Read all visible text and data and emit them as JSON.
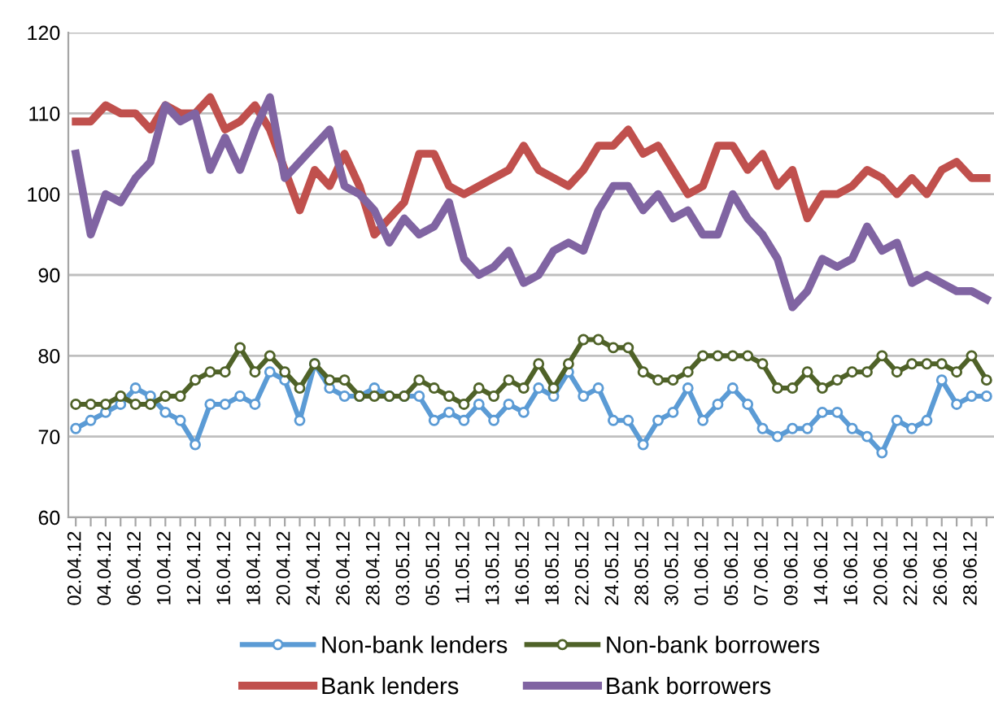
{
  "chart_data": {
    "type": "line",
    "categories": [
      "02.04.12",
      null,
      "04.04.12",
      null,
      "06.04.12",
      null,
      "10.04.12",
      null,
      "12.04.12",
      null,
      "16.04.12",
      null,
      "18.04.12",
      null,
      "20.04.12",
      null,
      "24.04.12",
      null,
      "26.04.12",
      null,
      "28.04.12",
      null,
      "03.05.12",
      null,
      "05.05.12",
      null,
      "11.05.12",
      null,
      "13.05.12",
      null,
      "16.05.12",
      null,
      "18.05.12",
      null,
      "22.05.12",
      null,
      "24.05.12",
      null,
      "28.05.12",
      null,
      "30.05.12",
      null,
      "01.06.12",
      null,
      "05.06.12",
      null,
      "07.06.12",
      null,
      "09.06.12",
      null,
      "14.06.12",
      null,
      "16.06.12",
      null,
      "20.06.12",
      null,
      "22.06.12",
      null,
      "26.06.12",
      null,
      "28.06.12",
      null
    ],
    "series": [
      {
        "name": "Non-bank lenders",
        "color": "#5b9bd5",
        "marker": "circle",
        "values": [
          71,
          72,
          73,
          74,
          76,
          75,
          73,
          72,
          69,
          74,
          74,
          75,
          74,
          78,
          77,
          72,
          79,
          76,
          75,
          75,
          76,
          75,
          75,
          75,
          72,
          73,
          72,
          74,
          72,
          74,
          73,
          76,
          75,
          78,
          75,
          76,
          72,
          72,
          69,
          72,
          73,
          76,
          72,
          74,
          76,
          74,
          71,
          70,
          71,
          71,
          73,
          73,
          71,
          70,
          68,
          72,
          71,
          72,
          77,
          74,
          75,
          75
        ]
      },
      {
        "name": "Bank lenders",
        "color": "#c0504d",
        "marker": "none",
        "values": [
          109,
          109,
          111,
          110,
          110,
          108,
          111,
          110,
          110,
          112,
          108,
          109,
          111,
          108,
          103,
          98,
          103,
          101,
          105,
          101,
          95,
          97,
          99,
          105,
          105,
          101,
          100,
          101,
          102,
          103,
          106,
          103,
          102,
          101,
          103,
          106,
          106,
          108,
          105,
          106,
          103,
          100,
          101,
          106,
          106,
          103,
          105,
          101,
          103,
          97,
          100,
          100,
          101,
          103,
          102,
          100,
          102,
          100,
          103,
          104,
          102,
          102
        ]
      },
      {
        "name": "Non-bank borrowers",
        "color": "#4f6228",
        "marker": "circle",
        "values": [
          74,
          74,
          74,
          75,
          74,
          74,
          75,
          75,
          77,
          78,
          78,
          81,
          78,
          80,
          78,
          76,
          79,
          77,
          77,
          75,
          75,
          75,
          75,
          77,
          76,
          75,
          74,
          76,
          75,
          77,
          76,
          79,
          76,
          79,
          82,
          82,
          81,
          81,
          78,
          77,
          77,
          78,
          80,
          80,
          80,
          80,
          79,
          76,
          76,
          78,
          76,
          77,
          78,
          78,
          80,
          78,
          79,
          79,
          79,
          78,
          80,
          77
        ]
      },
      {
        "name": "Bank borrowers",
        "color": "#8064a2",
        "marker": "none",
        "values": [
          105,
          95,
          100,
          99,
          102,
          104,
          111,
          109,
          110,
          103,
          107,
          103,
          108,
          112,
          102,
          104,
          106,
          108,
          101,
          100,
          98,
          94,
          97,
          95,
          96,
          99,
          92,
          90,
          91,
          93,
          89,
          90,
          93,
          94,
          93,
          98,
          101,
          101,
          98,
          100,
          97,
          98,
          95,
          95,
          100,
          97,
          95,
          92,
          86,
          88,
          92,
          91,
          92,
          96,
          93,
          94,
          89,
          90,
          89,
          88,
          88,
          87
        ]
      }
    ],
    "ylim": [
      60,
      120
    ],
    "yticks": [
      60,
      70,
      80,
      90,
      100,
      110,
      120
    ],
    "grid": "y",
    "legend": "bottom",
    "line_style": "solid"
  }
}
